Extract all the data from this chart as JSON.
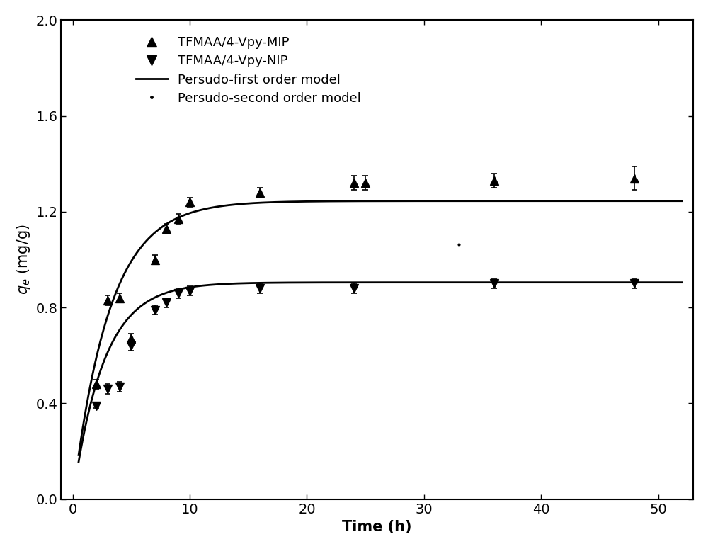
{
  "mip_x": [
    2,
    3,
    4,
    5,
    7,
    8,
    9,
    10,
    16,
    24,
    25,
    36,
    48
  ],
  "mip_y": [
    0.48,
    0.83,
    0.84,
    0.67,
    1.0,
    1.13,
    1.17,
    1.24,
    1.28,
    1.32,
    1.32,
    1.33,
    1.34
  ],
  "mip_yerr": [
    0.02,
    0.02,
    0.02,
    0.02,
    0.02,
    0.02,
    0.02,
    0.02,
    0.02,
    0.03,
    0.03,
    0.03,
    0.05
  ],
  "nip_x": [
    2,
    3,
    4,
    5,
    7,
    8,
    9,
    10,
    16,
    24,
    36,
    48
  ],
  "nip_y": [
    0.39,
    0.46,
    0.47,
    0.64,
    0.79,
    0.82,
    0.86,
    0.87,
    0.88,
    0.88,
    0.9,
    0.9
  ],
  "nip_yerr": [
    0.01,
    0.02,
    0.02,
    0.02,
    0.02,
    0.02,
    0.02,
    0.02,
    0.02,
    0.02,
    0.02,
    0.02
  ],
  "curve_mip_qe": 1.245,
  "curve_mip_k": 0.32,
  "curve_nip_qe": 0.905,
  "curve_nip_k": 0.38,
  "xlim": [
    -1,
    53
  ],
  "ylim": [
    0.0,
    2.0
  ],
  "xticks": [
    0,
    10,
    20,
    30,
    40,
    50
  ],
  "yticks": [
    0.0,
    0.4,
    0.8,
    1.2,
    1.6,
    2.0
  ],
  "xlabel": "Time (h)",
  "ylabel": "$q_e$ (mg/g)",
  "legend_labels": [
    "TFMAA/4-Vpy-MIP",
    "TFMAA/4-Vpy-NIP",
    "Persudo-first order model",
    "Persudo-second order model"
  ],
  "color": "#000000",
  "background_color": "#ffffff",
  "dot2_x": [
    33
  ],
  "dot2_y": [
    1.065
  ]
}
